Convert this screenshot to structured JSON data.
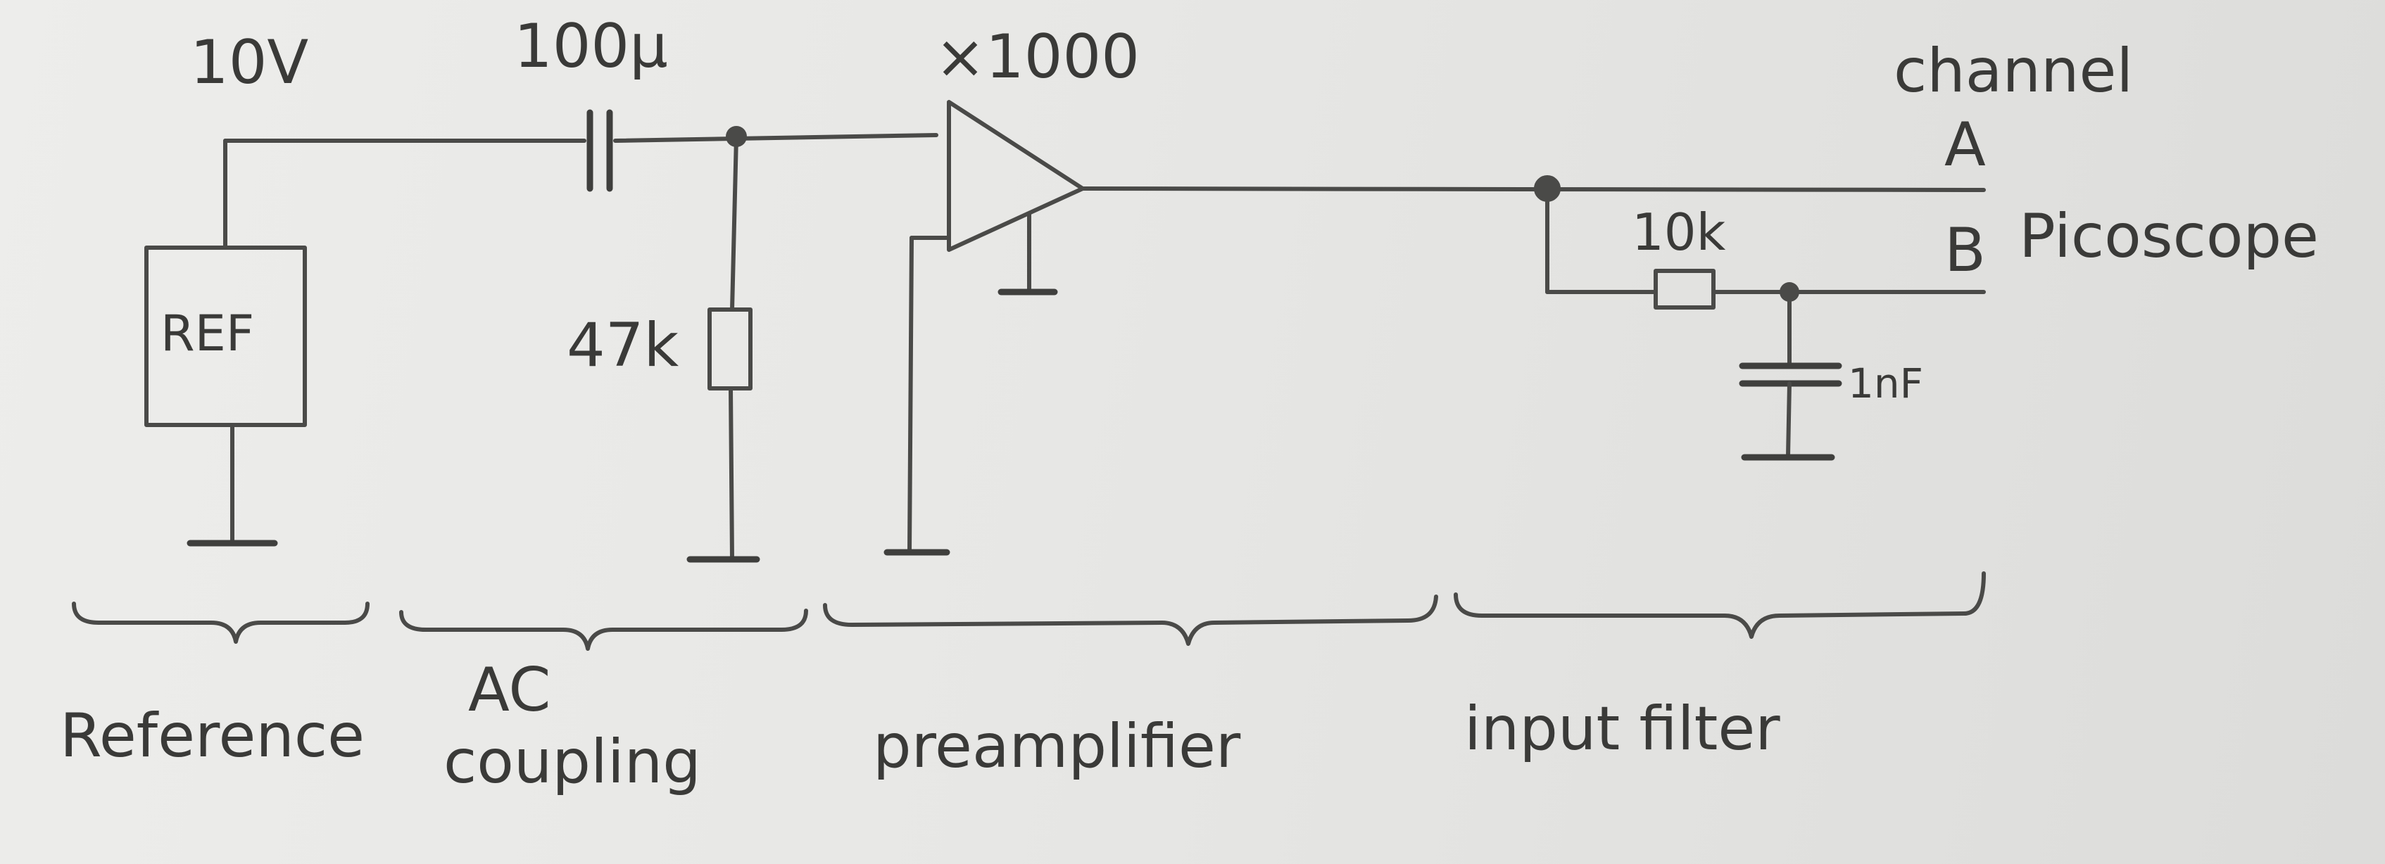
{
  "components": {
    "reference_voltage": "10V",
    "reference_box": "REF",
    "coupling_capacitor": "100μ",
    "coupling_resistor": "47k",
    "amplifier_gain": "×1000",
    "filter_resistor": "10k",
    "filter_capacitor": "1nF"
  },
  "outputs": {
    "channel_label": "channel",
    "channel_a": "A",
    "channel_b": "B",
    "instrument": "Picoscope"
  },
  "sections": [
    {
      "label": "Reference"
    },
    {
      "label_line1": "AC",
      "label_line2": "coupling"
    },
    {
      "label": "preamplifier"
    },
    {
      "label": "input filter"
    }
  ]
}
